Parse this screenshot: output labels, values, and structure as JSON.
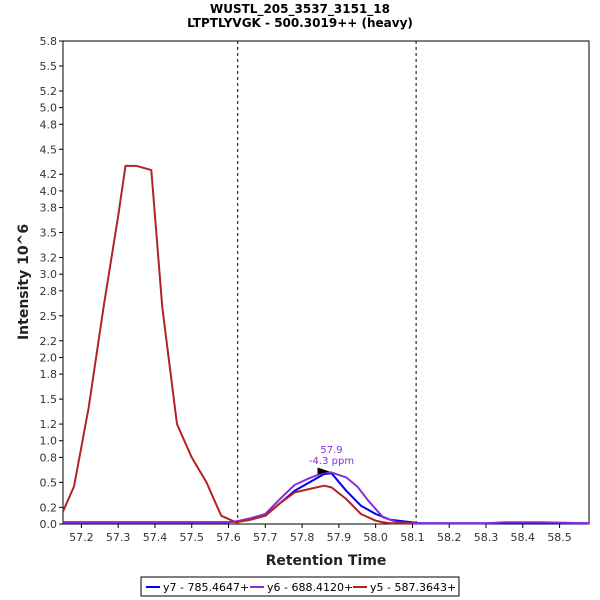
{
  "chart_data": {
    "type": "line",
    "title": "WUSTL_205_3537_3151_18",
    "subtitle": "LTPTLYVGK - 500.3019++ (heavy)",
    "xlabel": "Retention Time",
    "ylabel": "Intensity 10^6",
    "xlim": [
      57.15,
      58.58
    ],
    "ylim": [
      0,
      5.8
    ],
    "x_ticks": [
      57.2,
      57.3,
      57.4,
      57.5,
      57.6,
      57.7,
      57.8,
      57.9,
      58.0,
      58.1,
      58.2,
      58.3,
      58.4,
      58.5
    ],
    "y_ticks": [
      0.0,
      0.2,
      0.5,
      0.8,
      1.0,
      1.2,
      1.5,
      1.8,
      2.0,
      2.2,
      2.5,
      2.8,
      3.0,
      3.2,
      3.5,
      3.8,
      4.0,
      4.2,
      4.5,
      4.8,
      5.0,
      5.2,
      5.5,
      5.8
    ],
    "y_tick_labels": [
      "0.0",
      "0.2",
      "0.5",
      "0.8",
      "1.0",
      "1.2",
      "1.5",
      "1.8",
      "2.0",
      "2.2",
      "2.5",
      "2.8",
      "3.0",
      "3.2",
      "3.5",
      "3.8",
      "4.0",
      "4.2",
      "4.5",
      "4.8",
      "5.0",
      "5.2",
      "5.5",
      "5.8"
    ],
    "x_tick_labels": [
      "57.2",
      "57.3",
      "57.4",
      "57.5",
      "57.6",
      "57.7",
      "57.8",
      "57.9",
      "58.0",
      "58.1",
      "58.2",
      "58.3",
      "58.4",
      "58.5"
    ],
    "integration_bounds": [
      57.625,
      58.11
    ],
    "series": [
      {
        "name": "y7 - 785.4647+",
        "color": "#0000ee",
        "x": [
          57.15,
          57.6,
          57.62,
          57.66,
          57.7,
          57.74,
          57.78,
          57.82,
          57.86,
          57.88,
          57.92,
          57.96,
          58.0,
          58.04,
          58.08,
          58.12,
          58.58
        ],
        "y": [
          0.02,
          0.02,
          0.03,
          0.06,
          0.1,
          0.25,
          0.4,
          0.5,
          0.6,
          0.61,
          0.4,
          0.22,
          0.12,
          0.05,
          0.03,
          0.01,
          0.01
        ]
      },
      {
        "name": "y6 - 688.4120+",
        "color": "#8a2be2",
        "x": [
          57.15,
          57.6,
          57.62,
          57.66,
          57.7,
          57.74,
          57.78,
          57.82,
          57.86,
          57.88,
          57.92,
          57.95,
          57.98,
          58.02,
          58.06,
          58.1,
          58.3,
          58.35,
          58.45,
          58.58
        ],
        "y": [
          0.02,
          0.02,
          0.03,
          0.07,
          0.12,
          0.3,
          0.47,
          0.55,
          0.62,
          0.62,
          0.56,
          0.45,
          0.28,
          0.08,
          0.02,
          0.01,
          0.01,
          0.02,
          0.02,
          0.01
        ]
      },
      {
        "name": "y5 - 587.3643+",
        "color": "#b22222",
        "x": [
          57.15,
          57.18,
          57.22,
          57.26,
          57.3,
          57.32,
          57.35,
          57.39,
          57.42,
          57.46,
          57.5,
          57.54,
          57.58,
          57.62,
          57.66,
          57.7,
          57.74,
          57.78,
          57.82,
          57.86,
          57.88,
          57.92,
          57.96,
          58.0,
          58.02,
          58.04,
          58.1
        ],
        "y": [
          0.15,
          0.45,
          1.4,
          2.6,
          3.7,
          4.3,
          4.3,
          4.25,
          2.6,
          1.2,
          0.8,
          0.5,
          0.1,
          0.02,
          0.05,
          0.1,
          0.25,
          0.38,
          0.42,
          0.46,
          0.44,
          0.3,
          0.12,
          0.04,
          0.02,
          0.01,
          0.01
        ]
      }
    ],
    "annotations": [
      {
        "text": "57.9",
        "x": 57.88,
        "y": 0.85
      },
      {
        "text": "-4.3 ppm",
        "x": 57.88,
        "y": 0.72
      }
    ],
    "legend_position": "bottom-center",
    "grid": false
  }
}
